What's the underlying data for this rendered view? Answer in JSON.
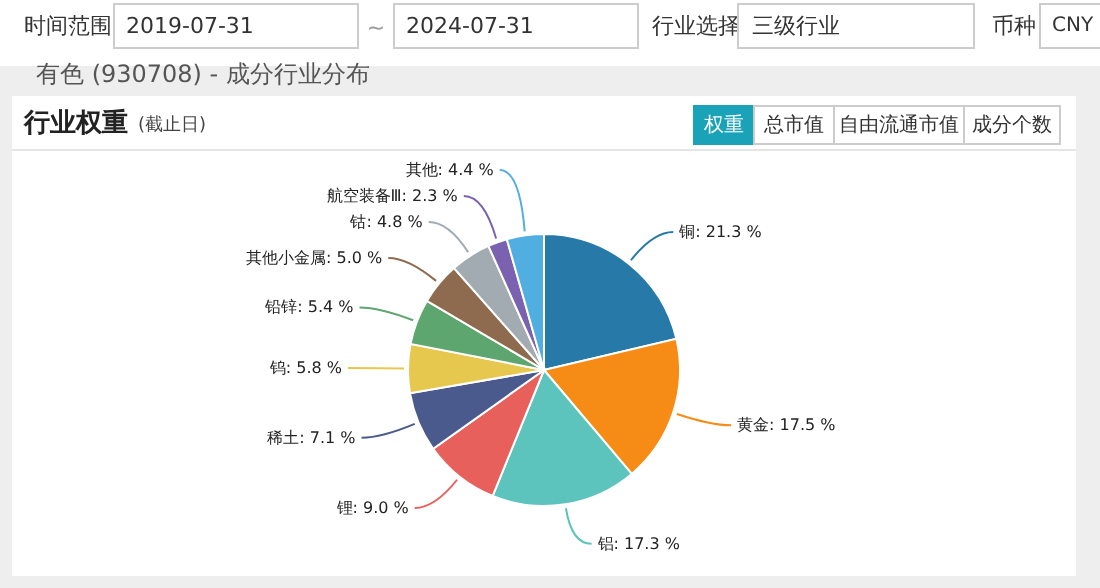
{
  "chart_data": {
    "type": "pie",
    "title": "有色 (930708) - 成分行业分布",
    "subtitle": "行业权重",
    "annotations": [
      "(截止日)",
      "时间范围",
      "2019-07-31",
      "~",
      "2024-07-31",
      "行业选择",
      "三级行业",
      "币种",
      "CNY",
      "权重",
      "总市值",
      "自由流通市值",
      "成分个数"
    ],
    "categories": [
      "铜",
      "黄金",
      "铝",
      "锂",
      "稀土",
      "钨",
      "铅锌",
      "其他小金属",
      "钴",
      "航空装备Ⅲ",
      "其他"
    ],
    "values": [
      21.3,
      17.5,
      17.3,
      9.0,
      7.1,
      5.8,
      5.4,
      5.0,
      4.8,
      2.3,
      4.4
    ],
    "value_labels": [
      "21.3 %",
      "17.5 %",
      "17.3 %",
      "9.0 %",
      "7.1 %",
      "5.8 %",
      "5.4 %",
      "5.0 %",
      "4.8 %",
      "2.3 %",
      "4.4 %"
    ],
    "colors": [
      "#2779a7",
      "#f68b15",
      "#5cc3bd",
      "#e8605c",
      "#4a5a8c",
      "#e7c84f",
      "#5ea66f",
      "#8e6b4f",
      "#a1abb1",
      "#7a62b0",
      "#50aee1"
    ]
  }
}
